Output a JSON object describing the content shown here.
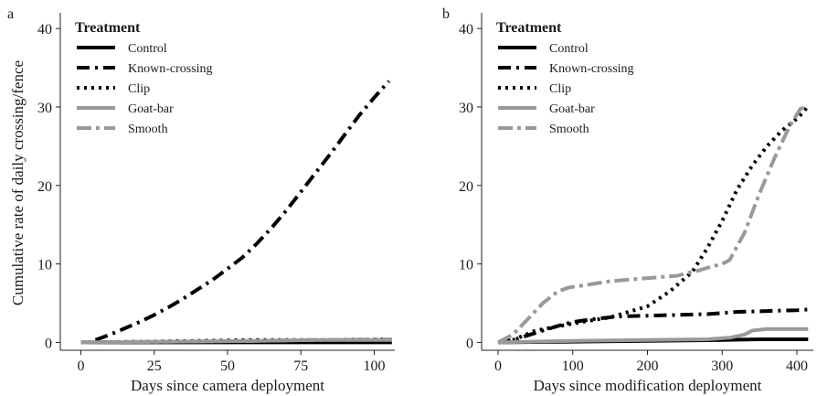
{
  "figure": {
    "ylabel": "Cumulative rate of daily crossing/fence"
  },
  "chart_data": [
    {
      "panel": "a",
      "type": "line",
      "xlabel": "Days since camera deployment",
      "ylabel": "Cumulative rate of daily crossing/fence",
      "xlim": [
        -7,
        107
      ],
      "ylim": [
        -1,
        42
      ],
      "xticks": [
        0,
        25,
        50,
        75,
        100
      ],
      "yticks": [
        0,
        10,
        20,
        30,
        40
      ],
      "legend_title": "Treatment",
      "legend_position": "top-left",
      "series": [
        {
          "name": "Control",
          "color": "#000000",
          "dash": "solid",
          "x": [
            0,
            106
          ],
          "y": [
            0,
            0
          ]
        },
        {
          "name": "Known-crossing",
          "color": "#000000",
          "dash": "dashdot",
          "x": [
            5,
            10,
            15,
            20,
            25,
            30,
            35,
            40,
            45,
            50,
            55,
            60,
            65,
            70,
            75,
            80,
            85,
            90,
            95,
            100,
            105
          ],
          "y": [
            0.3,
            1.0,
            1.8,
            2.6,
            3.5,
            4.5,
            5.6,
            6.8,
            8.0,
            9.4,
            10.8,
            12.6,
            14.6,
            16.8,
            19.2,
            21.6,
            24.0,
            26.5,
            29.0,
            31.2,
            33.3
          ]
        },
        {
          "name": "Clip",
          "color": "#000000",
          "dash": "dotted",
          "x": [
            0,
            20,
            40,
            60,
            80,
            105
          ],
          "y": [
            0,
            0.1,
            0.2,
            0.3,
            0.3,
            0.4
          ]
        },
        {
          "name": "Goat-bar",
          "color": "#999999",
          "dash": "solid",
          "x": [
            0,
            30,
            60,
            80,
            106
          ],
          "y": [
            0,
            0.1,
            0.2,
            0.3,
            0.3
          ]
        },
        {
          "name": "Smooth",
          "color": "#999999",
          "dash": "longdashdot",
          "x": [
            0,
            30,
            60,
            80,
            106
          ],
          "y": [
            0,
            0.1,
            0.2,
            0.3,
            0.4
          ]
        }
      ]
    },
    {
      "panel": "b",
      "type": "line",
      "xlabel": "Days since modification deployment",
      "ylabel": "",
      "xlim": [
        -22,
        422
      ],
      "ylim": [
        -1,
        42
      ],
      "xticks": [
        0,
        100,
        200,
        300,
        400
      ],
      "yticks": [
        0,
        10,
        20,
        30,
        40
      ],
      "legend_title": "Treatment",
      "legend_position": "top-left",
      "series": [
        {
          "name": "Control",
          "color": "#000000",
          "dash": "solid",
          "x": [
            0,
            100,
            200,
            300,
            350,
            415
          ],
          "y": [
            0,
            0.1,
            0.2,
            0.3,
            0.4,
            0.4
          ]
        },
        {
          "name": "Known-crossing",
          "color": "#000000",
          "dash": "dashdot",
          "x": [
            0,
            20,
            40,
            60,
            80,
            100,
            130,
            160,
            200,
            240,
            280,
            320,
            360,
            400,
            415
          ],
          "y": [
            0,
            0.3,
            0.9,
            1.5,
            2.1,
            2.6,
            3.0,
            3.3,
            3.4,
            3.5,
            3.6,
            3.9,
            4.0,
            4.1,
            4.2
          ]
        },
        {
          "name": "Clip",
          "color": "#000000",
          "dash": "dotted",
          "x": [
            0,
            20,
            50,
            100,
            150,
            200,
            230,
            260,
            280,
            300,
            320,
            340,
            360,
            380,
            400,
            410,
            415
          ],
          "y": [
            0,
            0.3,
            1.5,
            2.4,
            3.2,
            4.6,
            6.5,
            9.0,
            12.0,
            15.5,
            19.5,
            22.5,
            25.0,
            27.0,
            28.5,
            29.5,
            30.2
          ]
        },
        {
          "name": "Goat-bar",
          "color": "#999999",
          "dash": "solid",
          "x": [
            0,
            100,
            200,
            280,
            310,
            330,
            340,
            360,
            415
          ],
          "y": [
            0,
            0.2,
            0.3,
            0.4,
            0.6,
            1.0,
            1.5,
            1.7,
            1.7
          ]
        },
        {
          "name": "Smooth",
          "color": "#999999",
          "dash": "longdashdot",
          "x": [
            0,
            20,
            40,
            60,
            80,
            95,
            110,
            150,
            200,
            240,
            260,
            270,
            280,
            300,
            310,
            330,
            350,
            370,
            390,
            405,
            415
          ],
          "y": [
            0,
            1.0,
            3.0,
            5.0,
            6.5,
            7.0,
            7.2,
            7.8,
            8.2,
            8.5,
            9.0,
            9.2,
            9.5,
            10.0,
            10.5,
            14.0,
            19.0,
            23.5,
            27.5,
            29.8,
            30.0
          ]
        }
      ]
    }
  ]
}
